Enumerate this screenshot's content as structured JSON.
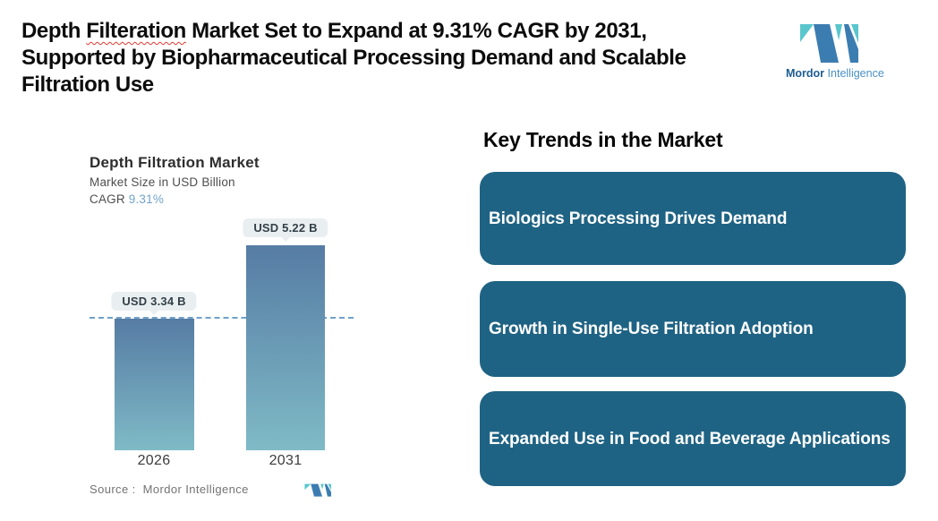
{
  "header": {
    "title": {
      "pre": "Depth ",
      "misspelled_word": "Filteration",
      "line1_rest": " Market Set to Expand at 9.31% CAGR by 2031,",
      "line2": "Supported by Biopharmaceutical Processing Demand and Scalable",
      "line3": "Filtration Use"
    },
    "brand": {
      "name_bold": "Mordor",
      "name_light": "Intelligence"
    }
  },
  "chart_data": {
    "type": "bar",
    "title": "Depth Filtration Market",
    "subtitle": "Market Size in USD Billion",
    "cagr_label": "CAGR",
    "cagr_value": "9.31%",
    "categories": [
      "2026",
      "2031"
    ],
    "values": [
      3.34,
      5.22
    ],
    "value_labels": [
      "USD 3.34 B",
      "USD 5.22 B"
    ],
    "ylabel": "Market Size in USD Billion",
    "ylim": [
      0,
      5.22
    ],
    "grid": "off",
    "legend": "none",
    "reference_line_value": 3.34,
    "source": "Source :  Mordor Intelligence"
  },
  "trends": {
    "heading": "Key Trends in the Market",
    "items": [
      {
        "label": "Biologics Processing Drives Demand"
      },
      {
        "label": "Growth in Single-Use Filtration Adoption"
      },
      {
        "label": "Expanded Use in Food and Beverage Applications"
      }
    ]
  },
  "colors": {
    "trend_box_bg": "#1f6384",
    "bar_gradient_top": "#567ca4",
    "bar_gradient_bottom": "#7fbac6",
    "dashed_reference_line": "#6fa1c8",
    "callout_bg": "#e9eff1",
    "cagr_value_text": "#72a3c9",
    "logo_dark_blue": "#3c7db1",
    "logo_teal": "#59c6cd",
    "spellcheck_squiggle": "#e23b32"
  }
}
